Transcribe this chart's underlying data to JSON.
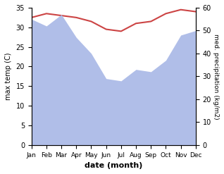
{
  "months": [
    "Jan",
    "Feb",
    "Mar",
    "Apr",
    "May",
    "Jun",
    "Jul",
    "Aug",
    "Sep",
    "Oct",
    "Nov",
    "Dec"
  ],
  "x": [
    0,
    1,
    2,
    3,
    4,
    5,
    6,
    7,
    8,
    9,
    10,
    11
  ],
  "temperature": [
    32.5,
    33.5,
    33.0,
    32.5,
    31.5,
    29.5,
    29.0,
    31.0,
    31.5,
    33.5,
    34.5,
    34.0
  ],
  "precipitation": [
    55,
    52,
    57,
    47,
    40,
    29,
    28,
    33,
    32,
    37,
    48,
    50
  ],
  "temp_color": "#cc4444",
  "precip_color": "#b0bee8",
  "bg_color": "#ffffff",
  "temp_ylim": [
    0,
    35
  ],
  "precip_ylim": [
    0,
    60
  ],
  "temp_yticks": [
    0,
    5,
    10,
    15,
    20,
    25,
    30,
    35
  ],
  "precip_yticks": [
    0,
    10,
    20,
    30,
    40,
    50,
    60
  ],
  "ylabel_left": "max temp (C)",
  "ylabel_right": "med. precipitation (kg/m2)",
  "xlabel": "date (month)",
  "figsize": [
    3.18,
    2.47
  ],
  "dpi": 100
}
